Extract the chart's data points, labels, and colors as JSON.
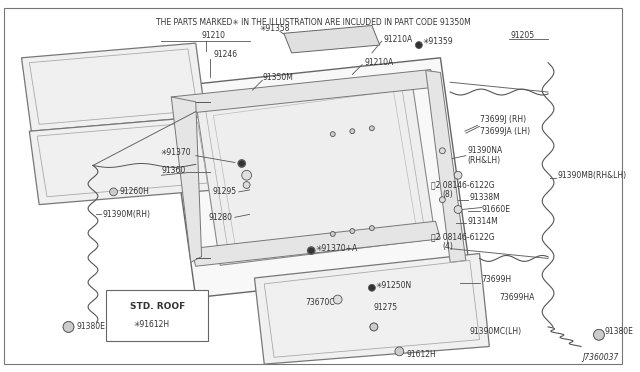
{
  "bg_color": "#ffffff",
  "border_color": "#888888",
  "line_color": "#555555",
  "text_color": "#333333",
  "diagram_number": "J7360037",
  "note_text": "THE PARTS MARKED✳ IN THE ILLUSTRATION ARE INCLUDED IN PART CODE 91350M",
  "std_roof_label": "STD. ROOF",
  "std_roof_part": "✳91612H",
  "fig_w": 6.4,
  "fig_h": 3.72,
  "dpi": 100
}
